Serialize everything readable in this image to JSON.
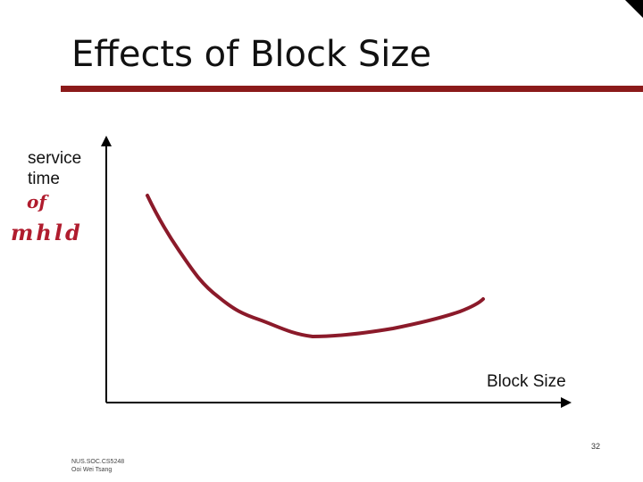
{
  "slide": {
    "title": "Effects of Block Size",
    "page_number": "32",
    "footer_line1": "NUS.SOC.CS5248",
    "footer_line2": "Ooi Wei Tsang",
    "accent_color": "#8b1a1a"
  },
  "diagram": {
    "y_axis_label_line1": "service",
    "y_axis_label_line2": "time",
    "handwritten_note_line1": "of",
    "handwritten_note_line2": "mhld",
    "x_axis_label": "Block Size",
    "curve_shape": "U-shaped: decreasing then slowly increasing",
    "ink_color": "#8b1a2a"
  }
}
